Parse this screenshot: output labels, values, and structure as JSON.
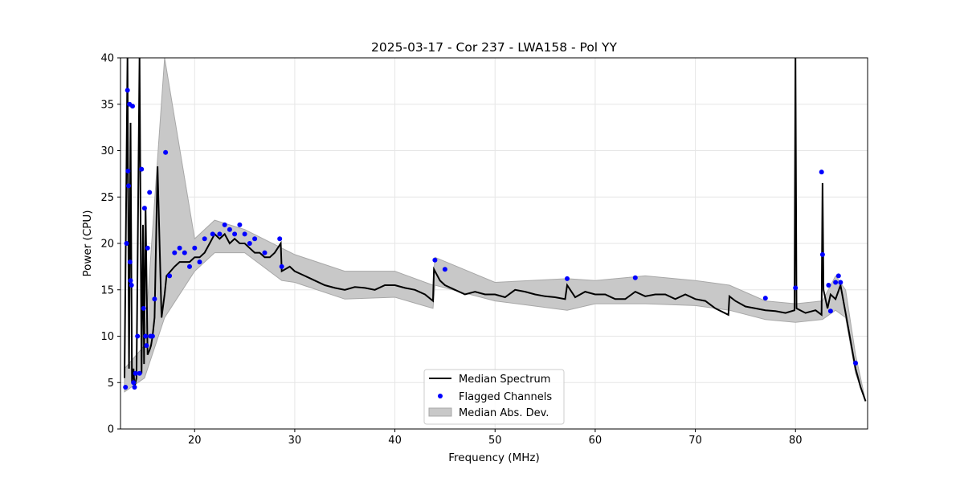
{
  "chart_data": {
    "type": "line",
    "title": "2025-03-17 - Cor 237 - LWA158 - Pol YY",
    "xlabel": "Frequency (MHz)",
    "ylabel": "Power (CPU)",
    "xlim": [
      12.6,
      87.2
    ],
    "ylim": [
      0,
      40
    ],
    "xticks": [
      20,
      30,
      40,
      50,
      60,
      70,
      80
    ],
    "yticks": [
      0,
      5,
      10,
      15,
      20,
      25,
      30,
      35,
      40
    ],
    "grid": true,
    "legend_position": "lower center",
    "legend": [
      "Median Spectrum",
      "Flagged Channels",
      "Median Abs. Dev."
    ],
    "colors": {
      "median": "#000000",
      "flagged": "#0000ff",
      "mad_fill": "#c8c8c8",
      "mad_edge": "#a8a8a8",
      "grid": "#e6e6e6"
    },
    "series": [
      {
        "name": "Median Spectrum",
        "x": [
          13.0,
          13.3,
          13.45,
          13.6,
          13.75,
          13.9,
          14.0,
          14.2,
          14.5,
          14.7,
          14.85,
          14.95,
          15.1,
          15.3,
          15.5,
          15.65,
          15.8,
          16.0,
          16.3,
          16.7,
          17.0,
          17.2,
          17.6,
          18.0,
          18.5,
          19.0,
          19.5,
          20.0,
          20.5,
          21.0,
          21.5,
          22.0,
          22.5,
          23.0,
          23.5,
          24.0,
          24.5,
          25.0,
          25.5,
          26.0,
          26.5,
          27.0,
          27.5,
          28.0,
          28.6,
          28.7,
          29.5,
          30.0,
          31.0,
          32.0,
          33.0,
          34.0,
          35.0,
          36.0,
          37.0,
          38.0,
          39.0,
          40.0,
          41.0,
          42.0,
          43.0,
          43.8,
          43.9,
          44.5,
          45.0,
          46.0,
          47.0,
          48.0,
          49.0,
          50.0,
          51.0,
          52.0,
          53.0,
          54.0,
          55.0,
          56.0,
          57.0,
          57.2,
          58.0,
          59.0,
          60.0,
          61.0,
          62.0,
          63.0,
          64.0,
          65.0,
          66.0,
          67.0,
          68.0,
          69.0,
          70.0,
          71.0,
          72.0,
          73.3,
          73.4,
          74.0,
          75.0,
          76.0,
          77.0,
          78.0,
          79.0,
          79.9,
          80.0,
          80.1,
          81.0,
          82.0,
          82.6,
          82.7,
          82.8,
          83.2,
          83.5,
          84.0,
          84.5,
          85.0,
          85.5,
          86.0,
          86.5,
          87.0
        ],
        "values": [
          5.5,
          40.0,
          6.5,
          33.0,
          5.0,
          6.5,
          4.5,
          5.5,
          40.0,
          6.0,
          22.0,
          7.0,
          24.0,
          8.0,
          8.5,
          9.0,
          10.0,
          12.0,
          28.3,
          12.0,
          14.5,
          16.5,
          17.0,
          17.5,
          18.0,
          18.0,
          18.0,
          18.5,
          18.5,
          19.0,
          20.0,
          21.0,
          20.5,
          21.0,
          20.0,
          20.5,
          20.0,
          20.0,
          19.5,
          19.0,
          19.0,
          18.5,
          18.5,
          19.0,
          20.0,
          17.0,
          17.5,
          17.0,
          16.5,
          16.0,
          15.5,
          15.2,
          15.0,
          15.3,
          15.2,
          15.0,
          15.5,
          15.5,
          15.2,
          15.0,
          14.5,
          13.8,
          17.2,
          16.0,
          15.5,
          15.0,
          14.5,
          14.8,
          14.5,
          14.5,
          14.2,
          15.0,
          14.8,
          14.5,
          14.3,
          14.2,
          14.0,
          15.5,
          14.2,
          14.8,
          14.5,
          14.5,
          14.0,
          14.0,
          14.8,
          14.3,
          14.5,
          14.5,
          14.0,
          14.5,
          14.0,
          13.8,
          13.0,
          12.3,
          14.3,
          13.8,
          13.2,
          13.0,
          12.8,
          12.7,
          12.5,
          12.8,
          40.0,
          13.0,
          12.5,
          12.8,
          12.3,
          26.5,
          15.0,
          13.0,
          14.5,
          14.0,
          15.5,
          12.5,
          9.5,
          6.5,
          4.5,
          3.0
        ]
      }
    ],
    "mad_band": {
      "x": [
        13.0,
        15.0,
        17.0,
        20.0,
        22.0,
        25.0,
        28.7,
        30.0,
        35.0,
        40.0,
        43.8,
        44.0,
        50.0,
        57.2,
        60.0,
        65.0,
        70.0,
        73.4,
        77.0,
        80.0,
        82.7,
        84.0,
        85.0,
        86.0,
        87.0
      ],
      "lower": [
        4.0,
        5.5,
        12.0,
        17.0,
        19.0,
        19.0,
        16.0,
        15.8,
        14.0,
        14.2,
        13.0,
        15.5,
        13.8,
        12.8,
        13.5,
        13.5,
        13.3,
        12.8,
        11.8,
        11.5,
        11.8,
        12.8,
        12.0,
        6.0,
        3.0
      ],
      "upper": [
        6.5,
        9.0,
        40.0,
        20.5,
        22.5,
        21.5,
        19.5,
        18.8,
        17.0,
        17.0,
        15.5,
        18.5,
        15.8,
        16.2,
        16.0,
        16.5,
        16.0,
        15.5,
        13.8,
        13.5,
        13.8,
        16.5,
        15.0,
        8.0,
        3.0
      ]
    },
    "flagged_channels": {
      "x": [
        13.1,
        13.2,
        13.3,
        13.35,
        13.4,
        13.5,
        13.55,
        13.6,
        13.7,
        13.8,
        13.9,
        14.0,
        14.1,
        14.3,
        14.5,
        14.7,
        14.9,
        15.0,
        15.1,
        15.2,
        15.3,
        15.5,
        15.6,
        15.8,
        16.0,
        17.1,
        17.5,
        18.0,
        18.5,
        19.0,
        19.5,
        20.0,
        20.5,
        21.0,
        21.8,
        22.5,
        23.0,
        23.5,
        24.0,
        24.5,
        25.0,
        25.5,
        26.0,
        27.0,
        28.5,
        28.7,
        44.0,
        45.0,
        57.2,
        64.0,
        77.0,
        80.0,
        82.6,
        82.7,
        83.3,
        83.5,
        84.0,
        84.3,
        84.5,
        86.0
      ],
      "y": [
        4.5,
        20.0,
        36.5,
        27.8,
        26.2,
        35.0,
        18.0,
        16.0,
        15.5,
        34.8,
        5.0,
        4.5,
        6.0,
        10.0,
        6.0,
        28.0,
        13.0,
        23.8,
        10.0,
        9.0,
        19.5,
        25.5,
        10.0,
        10.0,
        14.0,
        29.8,
        16.5,
        19.0,
        19.5,
        19.0,
        17.5,
        19.5,
        18.0,
        20.5,
        21.0,
        21.0,
        22.0,
        21.5,
        21.0,
        22.0,
        21.0,
        20.0,
        20.5,
        19.0,
        20.5,
        17.5,
        18.2,
        17.2,
        16.2,
        16.3,
        14.1,
        15.2,
        27.7,
        18.8,
        15.5,
        12.7,
        15.8,
        16.5,
        15.8,
        7.1
      ]
    }
  }
}
